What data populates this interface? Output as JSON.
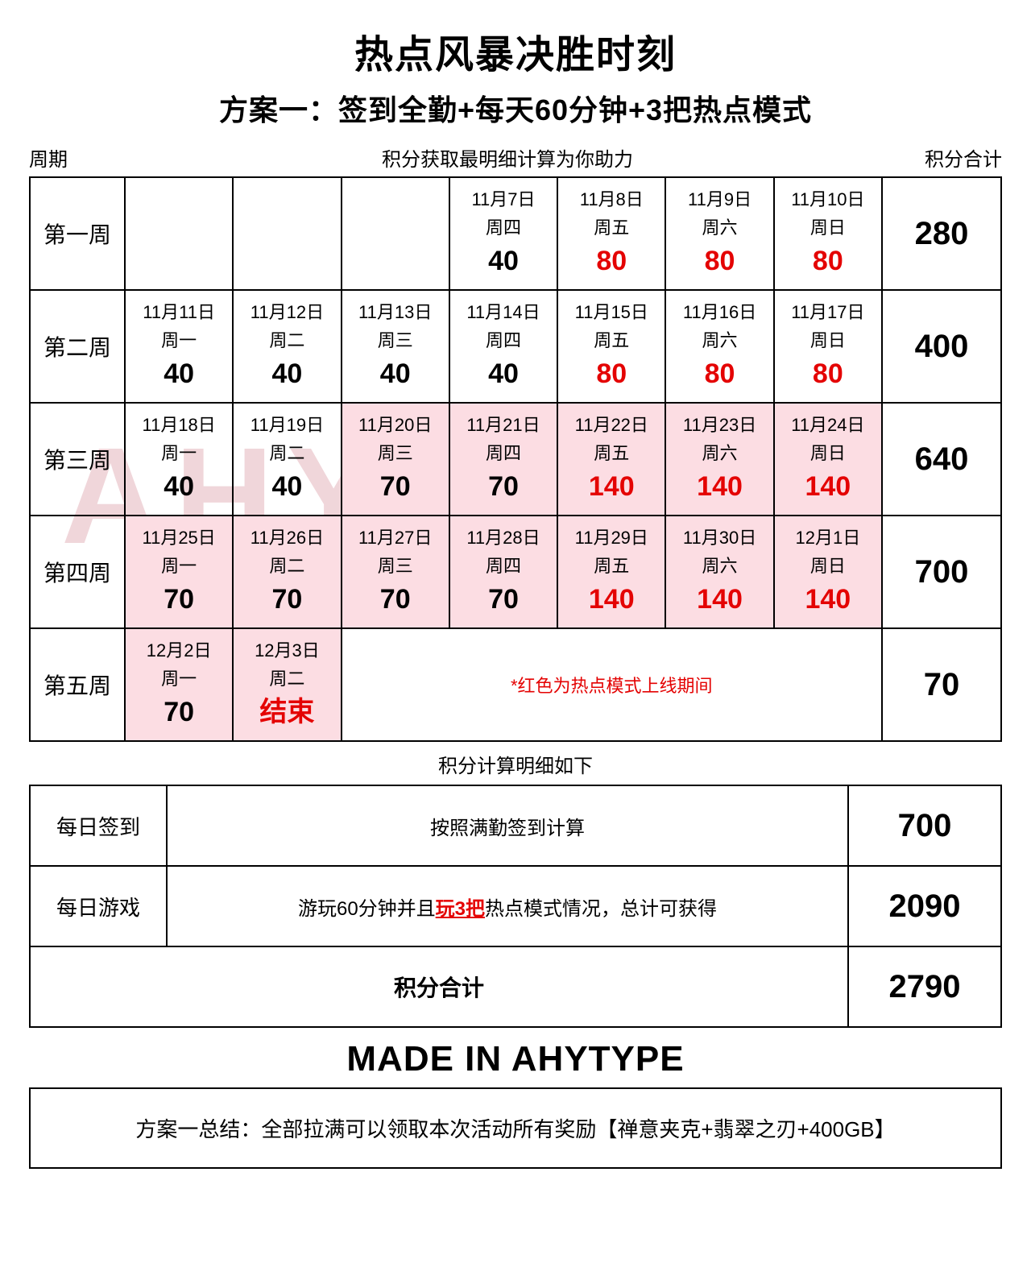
{
  "title": "热点风暴决胜时刻",
  "subtitle": "方案一：签到全勤+每天60分钟+3把热点模式",
  "header": {
    "left": "周期",
    "center": "积分获取最明细计算为你助力",
    "right": "积分合计"
  },
  "colors": {
    "text": "#000000",
    "accent_red": "#e40303",
    "highlight_bg": "#fcdde3",
    "background": "#ffffff"
  },
  "weeks": [
    {
      "label": "第一周",
      "total": "280",
      "days": [
        null,
        null,
        null,
        {
          "date": "11月7日",
          "dow": "周四",
          "pts": "40",
          "red": false,
          "hl": false
        },
        {
          "date": "11月8日",
          "dow": "周五",
          "pts": "80",
          "red": true,
          "hl": false
        },
        {
          "date": "11月9日",
          "dow": "周六",
          "pts": "80",
          "red": true,
          "hl": false
        },
        {
          "date": "11月10日",
          "dow": "周日",
          "pts": "80",
          "red": true,
          "hl": false
        }
      ]
    },
    {
      "label": "第二周",
      "total": "400",
      "days": [
        {
          "date": "11月11日",
          "dow": "周一",
          "pts": "40",
          "red": false,
          "hl": false
        },
        {
          "date": "11月12日",
          "dow": "周二",
          "pts": "40",
          "red": false,
          "hl": false
        },
        {
          "date": "11月13日",
          "dow": "周三",
          "pts": "40",
          "red": false,
          "hl": false
        },
        {
          "date": "11月14日",
          "dow": "周四",
          "pts": "40",
          "red": false,
          "hl": false
        },
        {
          "date": "11月15日",
          "dow": "周五",
          "pts": "80",
          "red": true,
          "hl": false
        },
        {
          "date": "11月16日",
          "dow": "周六",
          "pts": "80",
          "red": true,
          "hl": false
        },
        {
          "date": "11月17日",
          "dow": "周日",
          "pts": "80",
          "red": true,
          "hl": false
        }
      ]
    },
    {
      "label": "第三周",
      "total": "640",
      "days": [
        {
          "date": "11月18日",
          "dow": "周一",
          "pts": "40",
          "red": false,
          "hl": false
        },
        {
          "date": "11月19日",
          "dow": "周二",
          "pts": "40",
          "red": false,
          "hl": false
        },
        {
          "date": "11月20日",
          "dow": "周三",
          "pts": "70",
          "red": false,
          "hl": true
        },
        {
          "date": "11月21日",
          "dow": "周四",
          "pts": "70",
          "red": false,
          "hl": true
        },
        {
          "date": "11月22日",
          "dow": "周五",
          "pts": "140",
          "red": true,
          "hl": true
        },
        {
          "date": "11月23日",
          "dow": "周六",
          "pts": "140",
          "red": true,
          "hl": true
        },
        {
          "date": "11月24日",
          "dow": "周日",
          "pts": "140",
          "red": true,
          "hl": true
        }
      ]
    },
    {
      "label": "第四周",
      "total": "700",
      "days": [
        {
          "date": "11月25日",
          "dow": "周一",
          "pts": "70",
          "red": false,
          "hl": true
        },
        {
          "date": "11月26日",
          "dow": "周二",
          "pts": "70",
          "red": false,
          "hl": true
        },
        {
          "date": "11月27日",
          "dow": "周三",
          "pts": "70",
          "red": false,
          "hl": true
        },
        {
          "date": "11月28日",
          "dow": "周四",
          "pts": "70",
          "red": false,
          "hl": true
        },
        {
          "date": "11月29日",
          "dow": "周五",
          "pts": "140",
          "red": true,
          "hl": true
        },
        {
          "date": "11月30日",
          "dow": "周六",
          "pts": "140",
          "red": true,
          "hl": true
        },
        {
          "date": "12月1日",
          "dow": "周日",
          "pts": "140",
          "red": true,
          "hl": true
        }
      ]
    },
    {
      "label": "第五周",
      "total": "70",
      "days": [
        {
          "date": "12月2日",
          "dow": "周一",
          "pts": "70",
          "red": false,
          "hl": true
        },
        {
          "date": "12月3日",
          "dow": "周二",
          "pts": "结束",
          "red": true,
          "hl": true
        }
      ],
      "note": "*红色为热点模式上线期间"
    }
  ],
  "mid_caption": "积分计算明细如下",
  "details": [
    {
      "label": "每日签到",
      "desc_plain": "按照满勤签到计算",
      "value": "700"
    },
    {
      "label": "每日游戏",
      "desc_pre": "游玩60分钟并且",
      "desc_em": "玩3把",
      "desc_post": "热点模式情况，总计可获得",
      "value": "2090"
    }
  ],
  "details_total": {
    "label": "积分合计",
    "value": "2790"
  },
  "made_in": "MADE IN AHYTYPE",
  "summary": "方案一总结：全部拉满可以领取本次活动所有奖励【禅意夹克+翡翠之刃+400GB】",
  "watermark": "AHYTYPE"
}
